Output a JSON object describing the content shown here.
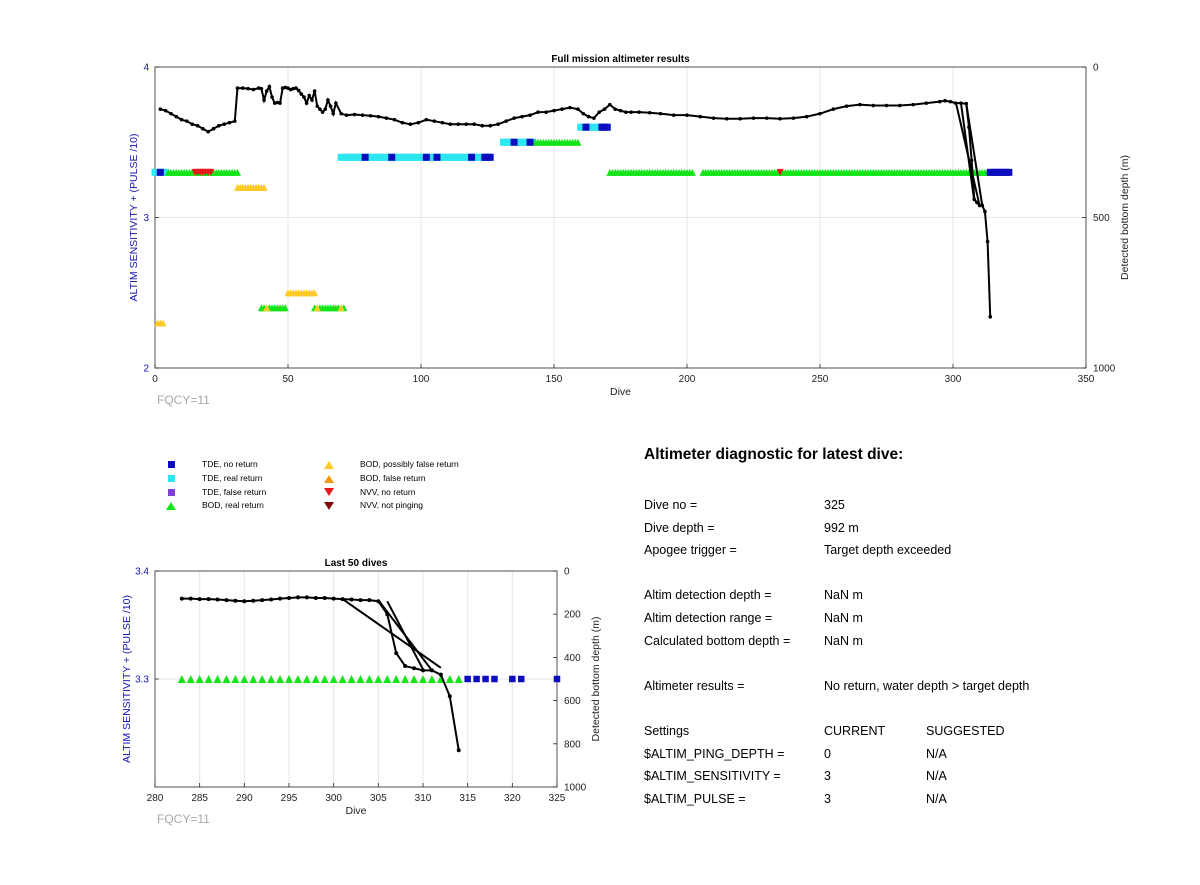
{
  "colors": {
    "tde_no_return": "#0d0dbf",
    "tde_real_return": "#2ce6f0",
    "tde_false_return": "#7f3fd6",
    "bod_real_return": "#16e41a",
    "bod_possibly_false": "#ffc92a",
    "bod_false_return": "#f39a12",
    "nvv_no_return": "#e8171b",
    "nvv_not_pinging": "#7e0d0d",
    "depth_line": "#000000",
    "left_axis": "#1414b4",
    "fqcy_text": "#a8a8a8"
  },
  "legend": [
    {
      "symbol": "square",
      "color_key": "tde_no_return",
      "label": "TDE, no return"
    },
    {
      "symbol": "square",
      "color_key": "tde_real_return",
      "label": "TDE, real return"
    },
    {
      "symbol": "square",
      "color_key": "tde_false_return",
      "label": "TDE, false return"
    },
    {
      "symbol": "triangle-up",
      "color_key": "bod_real_return",
      "label": "BOD, real return"
    },
    {
      "symbol": "triangle-up",
      "color_key": "bod_possibly_false",
      "label": "BOD, possibly false return"
    },
    {
      "symbol": "triangle-up",
      "color_key": "bod_false_return",
      "label": "BOD, false return"
    },
    {
      "symbol": "triangle-down",
      "color_key": "nvv_no_return",
      "label": "NVV, no return"
    },
    {
      "symbol": "triangle-down",
      "color_key": "nvv_not_pinging",
      "label": "NVV, not pinging"
    }
  ],
  "diagnostic": {
    "title": "Altimeter diagnostic for latest dive:",
    "dive_no_label": "Dive no =",
    "dive_no_value": "325",
    "dive_depth_label": "Dive depth =",
    "dive_depth_value": "992 m",
    "apogee_label": "Apogee trigger =",
    "apogee_value": "Target depth exceeded",
    "detect_depth_label": "Altim detection depth =",
    "detect_depth_value": "NaN m",
    "detect_range_label": "Altim detection range =",
    "detect_range_value": "NaN m",
    "calc_depth_label": "Calculated bottom depth =",
    "calc_depth_value": "NaN m",
    "results_label": "Altimeter results =",
    "results_value": "No return, water depth > target depth",
    "settings_header": "Settings",
    "current_header": "CURRENT",
    "suggested_header": "SUGGESTED",
    "settings": [
      {
        "name": "$ALTIM_PING_DEPTH =",
        "current": "0",
        "suggested": "N/A"
      },
      {
        "name": "$ALTIM_SENSITIVITY =",
        "current": "3",
        "suggested": "N/A"
      },
      {
        "name": "$ALTIM_PULSE =",
        "current": "3",
        "suggested": "N/A"
      }
    ]
  },
  "chart_data": [
    {
      "type": "scatter",
      "title": "Full mission altimeter results",
      "xlabel": "Dive",
      "ylabel": "ALTIM SENSITIVITY + (PULSE /10)",
      "y2label": "Detected bottom depth (m)",
      "annotation": "FQCY=11",
      "xlim": [
        0,
        350
      ],
      "ylim": [
        2,
        4
      ],
      "y2lim": [
        0,
        1000
      ],
      "y2_reversed": true,
      "xticks": [
        0,
        50,
        100,
        150,
        200,
        250,
        300,
        350
      ],
      "yticks": [
        2,
        3,
        4
      ],
      "y2ticks": [
        0,
        500,
        1000
      ],
      "grid": true,
      "marker_rows": [
        {
          "series": "tde_real_return",
          "y": 3.3,
          "ranges": [
            [
              0,
              4
            ]
          ]
        },
        {
          "series": "bod_real_return",
          "y": 3.3,
          "ranges": [
            [
              5,
              31
            ],
            [
              171,
              202
            ],
            [
              206,
              313
            ]
          ]
        },
        {
          "series": "nvv_no_return",
          "y": 3.3,
          "ranges": [
            [
              15,
              21
            ],
            [
              235,
              235
            ]
          ]
        },
        {
          "series": "bod_possibly_false",
          "y": 3.2,
          "ranges": [
            [
              31,
              41
            ]
          ]
        },
        {
          "series": "tde_real_return",
          "y": 3.4,
          "ranges": [
            [
              70,
              126
            ]
          ]
        },
        {
          "series": "tde_real_return",
          "y": 3.5,
          "ranges": [
            [
              131,
              142
            ]
          ]
        },
        {
          "series": "bod_real_return",
          "y": 3.5,
          "ranges": [
            [
              143,
              159
            ]
          ]
        },
        {
          "series": "tde_real_return",
          "y": 3.6,
          "ranges": [
            [
              160,
              170
            ]
          ]
        },
        {
          "series": "tde_no_return",
          "y": 3.6,
          "ranges": [
            [
              162,
              162
            ],
            [
              168,
              170
            ]
          ]
        },
        {
          "series": "tde_no_return",
          "y": 3.4,
          "ranges": [
            [
              79,
              79
            ],
            [
              89,
              89
            ],
            [
              102,
              102
            ],
            [
              106,
              106
            ],
            [
              119,
              119
            ],
            [
              124,
              126
            ]
          ]
        },
        {
          "series": "tde_no_return",
          "y": 3.5,
          "ranges": [
            [
              135,
              135
            ],
            [
              141,
              141
            ]
          ]
        },
        {
          "series": "tde_no_return",
          "y": 3.3,
          "ranges": [
            [
              2,
              2
            ],
            [
              314,
              321
            ]
          ]
        },
        {
          "series": "bod_possibly_false",
          "y": 2.5,
          "ranges": [
            [
              50,
              60
            ]
          ]
        },
        {
          "series": "bod_real_return",
          "y": 2.4,
          "ranges": [
            [
              40,
              49
            ],
            [
              60,
              71
            ]
          ]
        },
        {
          "series": "bod_possibly_false",
          "y": 2.4,
          "ranges": [
            [
              42,
              42
            ],
            [
              61,
              61
            ],
            [
              70,
              70
            ]
          ]
        },
        {
          "series": "bod_possibly_false",
          "y": 2.3,
          "ranges": [
            [
              1,
              3
            ]
          ]
        }
      ],
      "depth_line": {
        "x": [
          2,
          4,
          6,
          8,
          10,
          12,
          14,
          16,
          18,
          20,
          22,
          24,
          26,
          28,
          30,
          31,
          33,
          35,
          37,
          39,
          40,
          41,
          42,
          43,
          44,
          45,
          46,
          47,
          48,
          49,
          50,
          51,
          52,
          53,
          54,
          55,
          56,
          57,
          58,
          59,
          60,
          61,
          62,
          63,
          64,
          65,
          66,
          67,
          68,
          70,
          72,
          75,
          78,
          81,
          84,
          87,
          90,
          93,
          96,
          99,
          102,
          105,
          108,
          111,
          114,
          117,
          120,
          123,
          126,
          129,
          132,
          135,
          138,
          141,
          144,
          147,
          150,
          153,
          156,
          159,
          161,
          163,
          165,
          167,
          169,
          171,
          173,
          175,
          177,
          179,
          182,
          186,
          190,
          195,
          200,
          205,
          210,
          215,
          220,
          225,
          230,
          235,
          240,
          245,
          250,
          255,
          260,
          265,
          270,
          275,
          280,
          285,
          290,
          295,
          297,
          299,
          301,
          303,
          305,
          306,
          307,
          308,
          309,
          310,
          311,
          312,
          313,
          314
        ],
        "y": [
          140,
          145,
          155,
          165,
          175,
          180,
          190,
          195,
          205,
          215,
          205,
          195,
          190,
          185,
          180,
          70,
          70,
          72,
          75,
          70,
          72,
          110,
          80,
          65,
          100,
          120,
          118,
          120,
          70,
          68,
          70,
          75,
          72,
          70,
          78,
          90,
          100,
          120,
          95,
          110,
          80,
          130,
          140,
          150,
          140,
          110,
          130,
          155,
          120,
          155,
          160,
          158,
          160,
          162,
          165,
          170,
          175,
          185,
          190,
          185,
          175,
          180,
          185,
          190,
          190,
          190,
          190,
          195,
          195,
          190,
          180,
          170,
          165,
          160,
          150,
          150,
          145,
          140,
          135,
          140,
          155,
          165,
          170,
          150,
          140,
          125,
          140,
          145,
          150,
          150,
          150,
          152,
          155,
          160,
          160,
          165,
          170,
          172,
          172,
          170,
          170,
          172,
          170,
          165,
          155,
          140,
          130,
          125,
          128,
          128,
          128,
          125,
          120,
          115,
          112,
          115,
          120,
          120,
          122,
          200,
          310,
          440,
          450,
          460,
          460,
          480,
          580,
          830
        ]
      },
      "spike_lines": [
        {
          "x": [
            301,
            310
          ],
          "y": [
            115,
            460
          ]
        },
        {
          "x": [
            303,
            308
          ],
          "y": [
            120,
            445
          ]
        },
        {
          "x": [
            305,
            311
          ],
          "y": [
            122,
            460
          ]
        }
      ]
    },
    {
      "type": "scatter",
      "title": "Last 50 dives",
      "xlabel": "Dive",
      "ylabel": "ALTIM SENSITIVITY + (PULSE /10)",
      "y2label": "Detected bottom depth (m)",
      "annotation": "FQCY=11",
      "xlim": [
        280,
        325
      ],
      "ylim": [
        3.2,
        3.4
      ],
      "y2lim": [
        0,
        1000
      ],
      "y2_reversed": true,
      "xticks": [
        280,
        285,
        290,
        295,
        300,
        305,
        310,
        315,
        320,
        325
      ],
      "yticks": [
        3.3,
        3.4
      ],
      "y2ticks": [
        0,
        200,
        400,
        600,
        800,
        1000
      ],
      "grid": true,
      "bod_real_return_x": [
        283,
        284,
        285,
        286,
        287,
        288,
        289,
        290,
        291,
        292,
        293,
        294,
        295,
        296,
        297,
        298,
        299,
        300,
        301,
        302,
        303,
        304,
        305,
        306,
        307,
        308,
        309,
        310,
        311,
        312,
        313,
        314
      ],
      "bod_real_return_y": 3.3,
      "tde_no_return_x": [
        315,
        316,
        317,
        318,
        320,
        321,
        325
      ],
      "tde_no_return_y": 3.3,
      "depth_line": {
        "x": [
          283,
          284,
          285,
          286,
          287,
          288,
          289,
          290,
          291,
          292,
          293,
          294,
          295,
          296,
          297,
          298,
          299,
          300,
          301,
          302,
          303,
          304,
          305,
          306,
          307,
          308,
          309,
          310,
          311,
          312,
          313,
          314
        ],
        "y": [
          128,
          128,
          130,
          130,
          132,
          135,
          138,
          140,
          138,
          135,
          132,
          128,
          125,
          122,
          122,
          125,
          125,
          128,
          130,
          132,
          135,
          135,
          140,
          200,
          380,
          440,
          450,
          460,
          460,
          480,
          580,
          830
        ]
      },
      "spike_lines": [
        {
          "x": [
            301,
            312
          ],
          "y": [
            130,
            448
          ]
        },
        {
          "x": [
            305,
            311
          ],
          "y": [
            135,
            460
          ]
        },
        {
          "x": [
            306,
            310
          ],
          "y": [
            140,
            455
          ]
        }
      ]
    }
  ]
}
